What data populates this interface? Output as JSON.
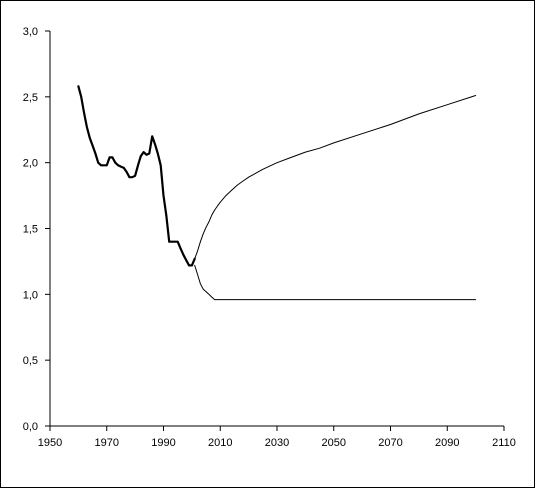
{
  "chart_data": {
    "type": "line",
    "title": "",
    "xlabel": "",
    "ylabel": "",
    "xlim": [
      1950,
      2110
    ],
    "ylim": [
      0.0,
      3.0
    ],
    "x_ticks": [
      "1950",
      "1970",
      "1990",
      "2010",
      "2030",
      "2050",
      "2070",
      "2090",
      "2110"
    ],
    "y_ticks": [
      "0,0",
      "0,5",
      "1,0",
      "1,5",
      "2,0",
      "2,5",
      "3,0"
    ],
    "grid": false,
    "legend": "none",
    "series": [
      {
        "style": "bold",
        "x": [
          1960,
          1961,
          1962,
          1963,
          1964,
          1965,
          1966,
          1967,
          1968,
          1969,
          1970,
          1971,
          1972,
          1973,
          1974,
          1975,
          1976,
          1977,
          1978,
          1979,
          1980,
          1981,
          1982,
          1983,
          1984,
          1985,
          1986,
          1987,
          1988,
          1989,
          1990,
          1991,
          1992,
          1993,
          1994,
          1995,
          1996,
          1997,
          1998,
          1999,
          2000,
          2001
        ],
        "y": [
          2.58,
          2.5,
          2.38,
          2.27,
          2.19,
          2.13,
          2.07,
          2.0,
          1.98,
          1.98,
          1.98,
          2.04,
          2.04,
          2.0,
          1.98,
          1.97,
          1.96,
          1.93,
          1.89,
          1.89,
          1.9,
          1.98,
          2.05,
          2.08,
          2.06,
          2.07,
          2.2,
          2.14,
          2.07,
          1.98,
          1.75,
          1.6,
          1.4,
          1.4,
          1.4,
          1.4,
          1.35,
          1.3,
          1.26,
          1.22,
          1.22,
          1.27
        ]
      },
      {
        "style": "thin-upper",
        "x": [
          2001,
          2002,
          2003,
          2004,
          2005,
          2006,
          2007,
          2008,
          2009,
          2010,
          2012,
          2014,
          2016,
          2018,
          2020,
          2025,
          2030,
          2035,
          2040,
          2045,
          2050,
          2060,
          2070,
          2080,
          2090,
          2100
        ],
        "y": [
          1.27,
          1.33,
          1.4,
          1.46,
          1.51,
          1.55,
          1.6,
          1.64,
          1.67,
          1.7,
          1.75,
          1.79,
          1.83,
          1.86,
          1.89,
          1.95,
          2.0,
          2.04,
          2.08,
          2.11,
          2.15,
          2.22,
          2.29,
          2.37,
          2.44,
          2.51
        ]
      },
      {
        "style": "thin-lower",
        "x": [
          2001,
          2002,
          2003,
          2004,
          2005,
          2006,
          2007,
          2008,
          2009,
          2010,
          2015,
          2020,
          2030,
          2040,
          2050,
          2060,
          2070,
          2080,
          2090,
          2100
        ],
        "y": [
          1.22,
          1.15,
          1.08,
          1.04,
          1.02,
          1.0,
          0.98,
          0.96,
          0.96,
          0.96,
          0.96,
          0.96,
          0.96,
          0.96,
          0.96,
          0.96,
          0.96,
          0.96,
          0.96,
          0.96
        ]
      }
    ]
  },
  "colors": {
    "line": "#000000",
    "background": "#ffffff"
  }
}
